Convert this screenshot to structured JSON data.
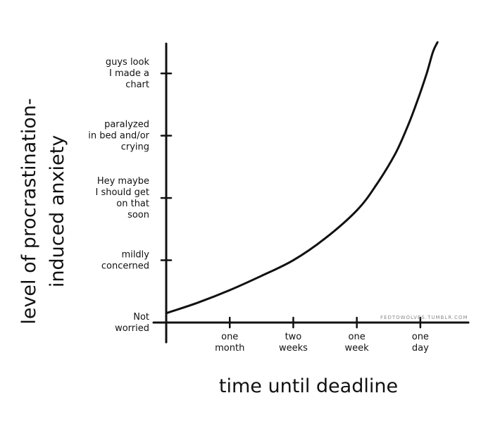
{
  "chart_data": {
    "type": "line",
    "xlabel": "time until deadline",
    "ylabel": [
      "level of procrastination-",
      "induced anxiety"
    ],
    "x_ticks": [
      {
        "lines": [
          "one",
          "month"
        ]
      },
      {
        "lines": [
          "two",
          "weeks"
        ]
      },
      {
        "lines": [
          "one",
          "week"
        ]
      },
      {
        "lines": [
          "one",
          "day"
        ]
      }
    ],
    "y_ticks": [
      {
        "lines": [
          "Not",
          "worried"
        ]
      },
      {
        "lines": [
          "mildly",
          "concerned"
        ]
      },
      {
        "lines": [
          "Hey maybe",
          "I should get",
          "on that",
          "soon"
        ]
      },
      {
        "lines": [
          "paralyzed",
          "in bed and/or",
          "crying"
        ]
      },
      {
        "lines": [
          "guys look",
          "I made a",
          "chart"
        ]
      }
    ],
    "series": [
      {
        "x": [
          0,
          0.5,
          1,
          1.5,
          2,
          2.5,
          3,
          3.3,
          3.6,
          3.8,
          3.95,
          4.1,
          4.2,
          4.27
        ],
        "y": [
          0.15,
          0.32,
          0.52,
          0.75,
          1.0,
          1.35,
          1.8,
          2.2,
          2.7,
          3.15,
          3.55,
          4.0,
          4.35,
          4.5
        ]
      }
    ],
    "xlim": [
      0,
      4.7
    ],
    "ylim": [
      0,
      4.5
    ],
    "grid": false,
    "legend": "none"
  },
  "watermark": "FEDTOWOLVES.TUMBLR.COM"
}
